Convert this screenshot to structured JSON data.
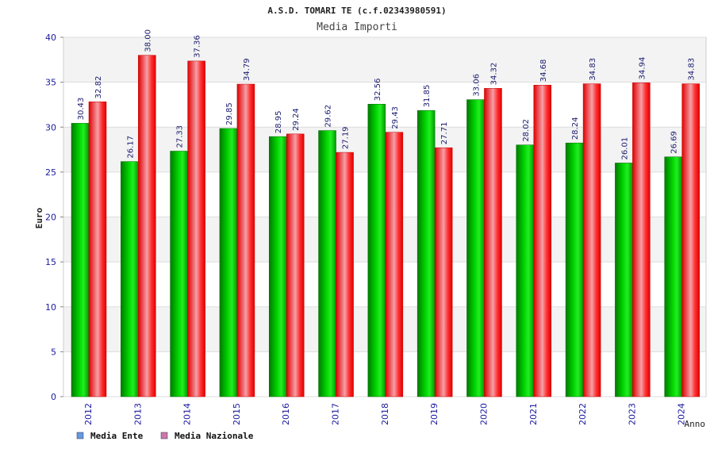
{
  "chart_data": {
    "type": "bar",
    "title": "A.S.D. TOMARI TE (c.f.02343980591)",
    "subtitle": "Media Importi",
    "xlabel": "Anno",
    "ylabel": "Euro",
    "ylim": [
      0,
      40
    ],
    "yticks": [
      0,
      5,
      10,
      15,
      20,
      25,
      30,
      35,
      40
    ],
    "grid": true,
    "legend_position": "bottom-left",
    "categories": [
      "2012",
      "2013",
      "2014",
      "2015",
      "2016",
      "2017",
      "2018",
      "2019",
      "2020",
      "2021",
      "2022",
      "2023",
      "2024"
    ],
    "series": [
      {
        "name": "Media Ente",
        "color": "#00c000",
        "legend_color": "#6699dd",
        "values": [
          30.43,
          26.17,
          27.33,
          29.85,
          28.95,
          29.62,
          32.56,
          31.85,
          33.06,
          28.02,
          28.24,
          26.01,
          26.69
        ],
        "labels": [
          "30.43",
          "26.17",
          "27.33",
          "29.85",
          "28.95",
          "29.62",
          "32.56",
          "31.85",
          "33.06",
          "28.02",
          "28.24",
          "26.01",
          "26.69"
        ]
      },
      {
        "name": "Media Nazionale",
        "color": "#ff1010",
        "legend_color": "#cc77aa",
        "values": [
          32.82,
          38.0,
          37.36,
          34.79,
          29.24,
          27.19,
          29.43,
          27.71,
          34.32,
          34.68,
          34.83,
          34.94,
          34.83
        ],
        "labels": [
          "32.82",
          "38.00",
          "37.36",
          "34.79",
          "29.24",
          "27.19",
          "29.43",
          "27.71",
          "34.32",
          "34.68",
          "34.83",
          "34.94",
          "34.83"
        ]
      }
    ]
  }
}
